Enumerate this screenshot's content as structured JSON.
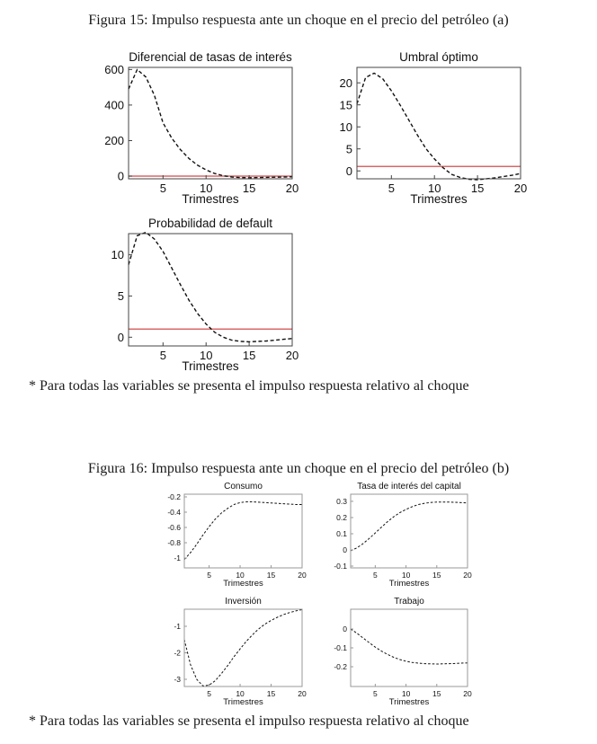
{
  "document": {
    "figures": [
      {
        "caption": "Figura 15: Impulso respuesta ante un choque en el precio del petróleo (a)",
        "footnote": "* Para todas las variables se presenta el impulso respuesta relativo al choque"
      },
      {
        "caption": "Figura 16: Impulso respuesta ante un choque en el precio del petróleo (b)",
        "footnote": "* Para todas las variables se presenta el impulso respuesta relativo al choque"
      }
    ]
  },
  "colors": {
    "text": "#111111",
    "curve": "#111111",
    "reference_line": "#d96868",
    "frame_fig15": "#444444",
    "frame_fig16": "#999999"
  },
  "chart_data": [
    {
      "id": "diferencial-tasas",
      "figure": 15,
      "type": "line",
      "title": "Diferencial de tasas de interés",
      "xlabel": "Trimestres",
      "line_style": "dashed-black",
      "grid": false,
      "legend": null,
      "x": [
        1,
        2,
        3,
        4,
        5,
        6,
        7,
        8,
        9,
        10,
        11,
        12,
        13,
        14,
        15,
        16,
        17,
        18,
        19,
        20
      ],
      "values": [
        490,
        600,
        558,
        455,
        300,
        215,
        150,
        100,
        62,
        35,
        15,
        2,
        -5,
        -8,
        -9,
        -8,
        -7,
        -6,
        -5,
        -4
      ],
      "xlim": [
        1,
        20
      ],
      "ylim": [
        -15,
        612
      ],
      "xticks": [
        5,
        10,
        15,
        20
      ],
      "xtick_labels": [
        "5",
        "10",
        "15",
        "20"
      ],
      "yticks": [
        0,
        200,
        400,
        600
      ],
      "ytick_labels": [
        "0",
        "200",
        "400",
        "600"
      ],
      "reference_line_y": 0
    },
    {
      "id": "umbral-optimo",
      "figure": 15,
      "type": "line",
      "title": "Umbral óptimo",
      "xlabel": "Trimestres",
      "line_style": "dashed-black",
      "grid": false,
      "legend": null,
      "x": [
        1,
        2,
        3,
        4,
        5,
        6,
        7,
        8,
        9,
        10,
        11,
        12,
        13,
        14,
        15,
        16,
        17,
        18,
        19,
        20
      ],
      "values": [
        15.2,
        21.2,
        22.2,
        20.9,
        18.2,
        15.0,
        11.6,
        8.2,
        5.1,
        2.7,
        0.7,
        -0.8,
        -1.5,
        -1.9,
        -2.0,
        -1.8,
        -1.6,
        -1.3,
        -1.0,
        -0.6
      ],
      "xlim": [
        1,
        20
      ],
      "ylim": [
        -1.8,
        23.5
      ],
      "xticks": [
        5,
        10,
        15,
        20
      ],
      "xtick_labels": [
        "5",
        "10",
        "15",
        "20"
      ],
      "yticks": [
        0,
        5,
        10,
        15,
        20
      ],
      "ytick_labels": [
        "0",
        "5",
        "10",
        "15",
        "20"
      ],
      "reference_line_y": 1
    },
    {
      "id": "probabilidad-default",
      "figure": 15,
      "type": "line",
      "title": "Probabilidad de default",
      "xlabel": "Trimestres",
      "line_style": "dashed-black",
      "grid": false,
      "legend": null,
      "x": [
        1,
        2,
        3,
        4,
        5,
        6,
        7,
        8,
        9,
        10,
        11,
        12,
        13,
        14,
        15,
        16,
        17,
        18,
        19,
        20
      ],
      "values": [
        8.8,
        12.3,
        12.7,
        11.9,
        10.4,
        8.4,
        6.4,
        4.5,
        2.9,
        1.6,
        0.6,
        0.0,
        -0.35,
        -0.5,
        -0.55,
        -0.5,
        -0.45,
        -0.35,
        -0.25,
        -0.15
      ],
      "xlim": [
        1,
        20
      ],
      "ylim": [
        -1.05,
        12.55
      ],
      "xticks": [
        5,
        10,
        15,
        20
      ],
      "xtick_labels": [
        "5",
        "10",
        "15",
        "20"
      ],
      "yticks": [
        0,
        5,
        10
      ],
      "ytick_labels": [
        "0",
        "5",
        "10"
      ],
      "reference_line_y": 1
    },
    {
      "id": "consumo",
      "figure": 16,
      "type": "line",
      "title": "Consumo",
      "xlabel": "Trimestres",
      "line_style": "dashed-black",
      "grid": false,
      "legend": null,
      "x": [
        1,
        2,
        3,
        4,
        5,
        6,
        7,
        8,
        9,
        10,
        11,
        12,
        13,
        14,
        15,
        16,
        17,
        18,
        19,
        20
      ],
      "values": [
        -1.02,
        -0.93,
        -0.82,
        -0.7,
        -0.59,
        -0.49,
        -0.41,
        -0.35,
        -0.3,
        -0.275,
        -0.265,
        -0.265,
        -0.27,
        -0.275,
        -0.28,
        -0.285,
        -0.29,
        -0.295,
        -0.3,
        -0.3
      ],
      "xlim": [
        1,
        20
      ],
      "ylim": [
        -1.13,
        -0.165
      ],
      "xticks": [
        5,
        10,
        15,
        20
      ],
      "xtick_labels": [
        "5",
        "10",
        "15",
        "20"
      ],
      "yticks": [
        -1,
        -0.8,
        -0.6,
        -0.4,
        -0.2
      ],
      "ytick_labels": [
        "-1",
        "-0.8",
        "-0.6",
        "-0.4",
        "-0.2"
      ],
      "reference_line_y": null
    },
    {
      "id": "tasa-interes-capital",
      "figure": 16,
      "type": "line",
      "title": "Tasa de interés del capital",
      "xlabel": "Trimestres",
      "line_style": "dashed-black",
      "grid": false,
      "legend": null,
      "x": [
        1,
        2,
        3,
        4,
        5,
        6,
        7,
        8,
        9,
        10,
        11,
        12,
        13,
        14,
        15,
        16,
        17,
        18,
        19,
        20
      ],
      "values": [
        -0.005,
        0.012,
        0.038,
        0.07,
        0.105,
        0.14,
        0.175,
        0.205,
        0.23,
        0.25,
        0.267,
        0.28,
        0.288,
        0.293,
        0.295,
        0.296,
        0.295,
        0.294,
        0.292,
        0.29
      ],
      "xlim": [
        1,
        20
      ],
      "ylim": [
        -0.111,
        0.344
      ],
      "xticks": [
        5,
        10,
        15,
        20
      ],
      "xtick_labels": [
        "5",
        "10",
        "15",
        "20"
      ],
      "yticks": [
        -0.1,
        0,
        0.1,
        0.2,
        0.3
      ],
      "ytick_labels": [
        "-0.1",
        "0",
        "0.1",
        "0.2",
        "0.3"
      ],
      "reference_line_y": null
    },
    {
      "id": "inversion",
      "figure": 16,
      "type": "line",
      "title": "Inversión",
      "xlabel": "Trimestres",
      "line_style": "dashed-black",
      "grid": false,
      "legend": null,
      "x": [
        1,
        2,
        3,
        4,
        5,
        6,
        7,
        8,
        9,
        10,
        11,
        12,
        13,
        14,
        15,
        16,
        17,
        18,
        19,
        20
      ],
      "values": [
        -1.5,
        -2.45,
        -3.0,
        -3.25,
        -3.22,
        -3.05,
        -2.78,
        -2.48,
        -2.15,
        -1.85,
        -1.57,
        -1.32,
        -1.1,
        -0.92,
        -0.78,
        -0.66,
        -0.56,
        -0.48,
        -0.42,
        -0.37
      ],
      "xlim": [
        1,
        20
      ],
      "ylim": [
        -3.27,
        -0.356
      ],
      "xticks": [
        5,
        10,
        15,
        20
      ],
      "xtick_labels": [
        "5",
        "10",
        "15",
        "20"
      ],
      "yticks": [
        -3,
        -2,
        -1
      ],
      "ytick_labels": [
        "-3",
        "-2",
        "-1"
      ],
      "reference_line_y": null
    },
    {
      "id": "trabajo",
      "figure": 16,
      "type": "line",
      "title": "Trabajo",
      "xlabel": "Trimestres",
      "line_style": "dashed-black",
      "grid": false,
      "legend": null,
      "x": [
        1,
        2,
        3,
        4,
        5,
        6,
        7,
        8,
        9,
        10,
        11,
        12,
        13,
        14,
        15,
        16,
        17,
        18,
        19,
        20
      ],
      "values": [
        0.0,
        -0.022,
        -0.047,
        -0.072,
        -0.096,
        -0.117,
        -0.135,
        -0.15,
        -0.162,
        -0.171,
        -0.177,
        -0.181,
        -0.184,
        -0.185,
        -0.186,
        -0.185,
        -0.184,
        -0.183,
        -0.181,
        -0.18
      ],
      "xlim": [
        1,
        20
      ],
      "ylim": [
        -0.305,
        0.105
      ],
      "xticks": [
        5,
        10,
        15,
        20
      ],
      "xtick_labels": [
        "5",
        "10",
        "15",
        "20"
      ],
      "yticks": [
        -0.2,
        -0.1,
        0
      ],
      "ytick_labels": [
        "-0.2",
        "-0.1",
        "0"
      ],
      "reference_line_y": null
    }
  ]
}
